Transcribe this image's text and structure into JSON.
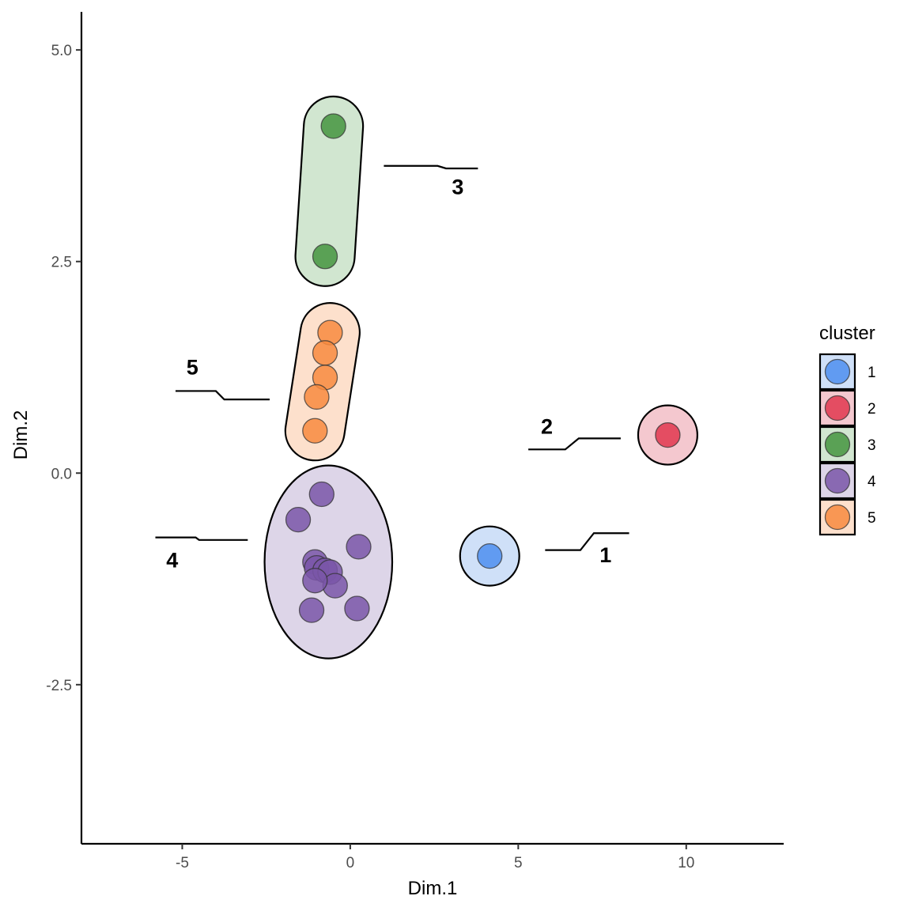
{
  "chart_data": {
    "type": "scatter",
    "title": "",
    "xlabel": "Dim.1",
    "ylabel": "Dim.2",
    "xlim": [
      -8,
      12.9
    ],
    "ylim": [
      -4.38,
      5.45
    ],
    "x_ticks": [
      -5,
      0,
      5,
      10
    ],
    "x_tick_labels": [
      "-5",
      "0",
      "5",
      "10"
    ],
    "y_ticks": [
      -2.5,
      0.0,
      2.5,
      5.0
    ],
    "y_tick_labels": [
      "-2.5",
      "0.0",
      "2.5",
      "5.0"
    ],
    "grid": false,
    "legend": {
      "title": "cluster",
      "position": "right"
    },
    "series": [
      {
        "name": "1",
        "color": "#4d8ef0",
        "fill": "#cfe0f8",
        "points": [
          [
            4.15,
            -0.98
          ]
        ],
        "hull": {
          "shape": "circle",
          "cx": 4.15,
          "cy": -0.98,
          "rx": 0.87,
          "ry": 0.35
        },
        "label": {
          "text": "1",
          "x": 7.6,
          "y": -0.97
        },
        "connector": [
          [
            5.8,
            -0.91
          ],
          [
            6.85,
            -0.91
          ],
          [
            7.25,
            -0.71
          ],
          [
            8.3,
            -0.71
          ]
        ]
      },
      {
        "name": "2",
        "color": "#e0374f",
        "fill": "#f4c8cf",
        "points": [
          [
            9.45,
            0.45
          ]
        ],
        "hull": {
          "shape": "circle",
          "cx": 9.45,
          "cy": 0.45,
          "rx": 0.87,
          "ry": 0.35
        },
        "label": {
          "text": "2",
          "x": 5.85,
          "y": 0.55
        },
        "connector": [
          [
            5.3,
            0.28
          ],
          [
            6.4,
            0.28
          ],
          [
            6.8,
            0.41
          ],
          [
            8.05,
            0.41
          ]
        ]
      },
      {
        "name": "3",
        "color": "#459440",
        "fill": "#d1e6d0",
        "points": [
          [
            -0.5,
            4.1
          ],
          [
            -0.75,
            2.56
          ]
        ],
        "hull": {
          "shape": "capsule",
          "x1": -0.5,
          "y1": 4.1,
          "x2": -0.75,
          "y2": 2.56,
          "rx": 1.1,
          "ry": 0.35
        },
        "label": {
          "text": "3",
          "x": 3.2,
          "y": 3.38
        },
        "connector": [
          [
            1.0,
            3.63
          ],
          [
            2.6,
            3.63
          ],
          [
            2.85,
            3.6
          ],
          [
            3.8,
            3.6
          ]
        ]
      },
      {
        "name": "4",
        "color": "#7a56a8",
        "fill": "#ddd5e8",
        "points": [
          [
            -0.85,
            -0.25
          ],
          [
            -1.55,
            -0.55
          ],
          [
            0.25,
            -0.87
          ],
          [
            -1.05,
            -1.05
          ],
          [
            -1.0,
            -1.12
          ],
          [
            -0.75,
            -1.15
          ],
          [
            -0.6,
            -1.17
          ],
          [
            -0.45,
            -1.33
          ],
          [
            -1.15,
            -1.62
          ],
          [
            0.2,
            -1.6
          ],
          [
            -1.05,
            -1.27
          ]
        ],
        "hull": {
          "shape": "ellipse",
          "cx": -0.65,
          "cy": -1.05,
          "rx": 1.9,
          "ry": 1.14
        },
        "label": {
          "text": "4",
          "x": -5.3,
          "y": -1.03
        },
        "connector": [
          [
            -5.8,
            -0.76
          ],
          [
            -4.6,
            -0.76
          ],
          [
            -4.5,
            -0.79
          ],
          [
            -3.05,
            -0.79
          ]
        ]
      },
      {
        "name": "5",
        "color": "#f88a3e",
        "fill": "#fde0cc",
        "points": [
          [
            -0.6,
            1.66
          ],
          [
            -0.75,
            1.42
          ],
          [
            -0.75,
            1.13
          ],
          [
            -1.0,
            0.9
          ],
          [
            -1.05,
            0.5
          ]
        ],
        "hull": {
          "shape": "capsule",
          "x1": -0.6,
          "y1": 1.66,
          "x2": -1.05,
          "y2": 0.5,
          "rx": 0.95,
          "ry": 0.35
        },
        "label": {
          "text": "5",
          "x": -4.7,
          "y": 1.25
        },
        "connector": [
          [
            -5.2,
            0.97
          ],
          [
            -4.0,
            0.97
          ],
          [
            -3.75,
            0.87
          ],
          [
            -2.4,
            0.87
          ]
        ]
      }
    ]
  }
}
